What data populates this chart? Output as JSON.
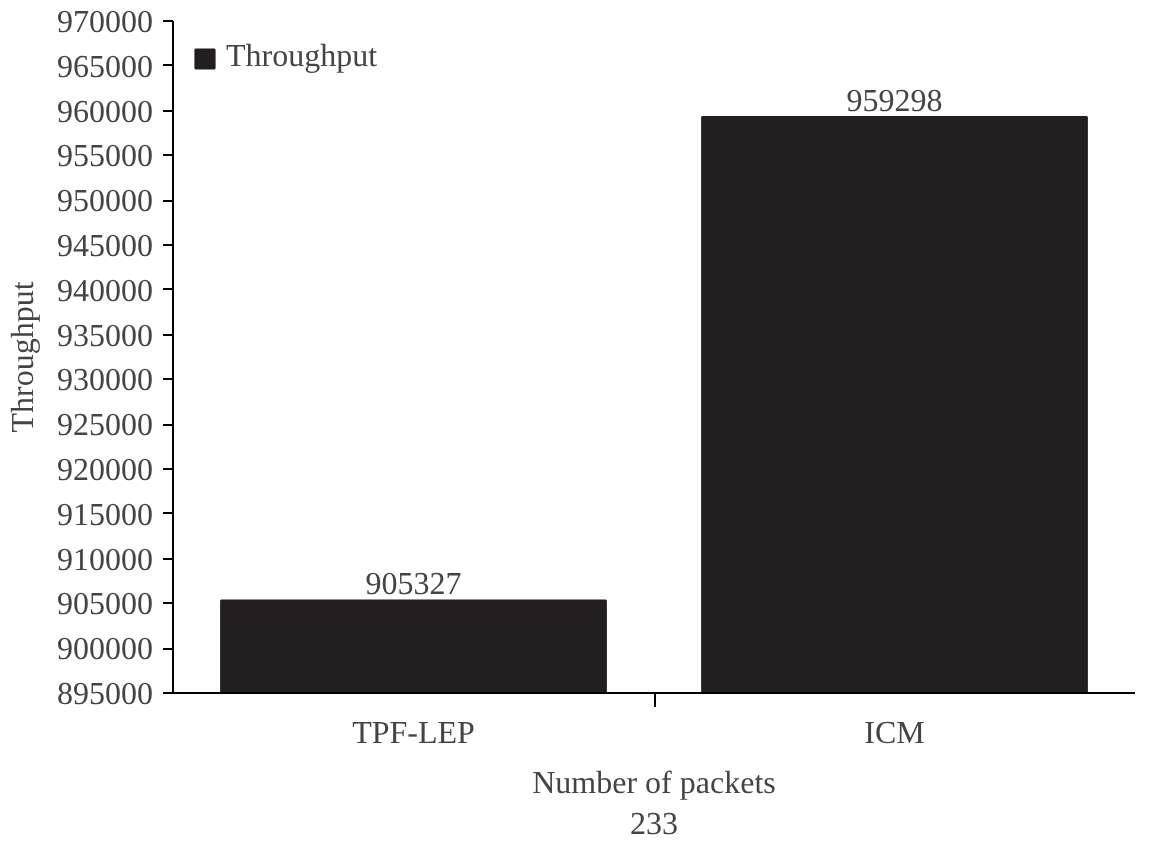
{
  "chart_data": {
    "type": "bar",
    "xlabel": "Number of packets\n233",
    "ylabel": "Throughput",
    "categories": [
      "TPF-LEP",
      "ICM"
    ],
    "series": [
      {
        "name": "Throughput",
        "color": "#231f20",
        "values": [
          905327,
          959298
        ]
      }
    ],
    "ylim": [
      895000,
      970000
    ],
    "yticks": [
      895000,
      900000,
      905000,
      910000,
      915000,
      920000,
      925000,
      930000,
      935000,
      940000,
      945000,
      950000,
      955000,
      960000,
      965000,
      970000
    ],
    "data_labels": true,
    "legend": "top left",
    "grid": false
  }
}
